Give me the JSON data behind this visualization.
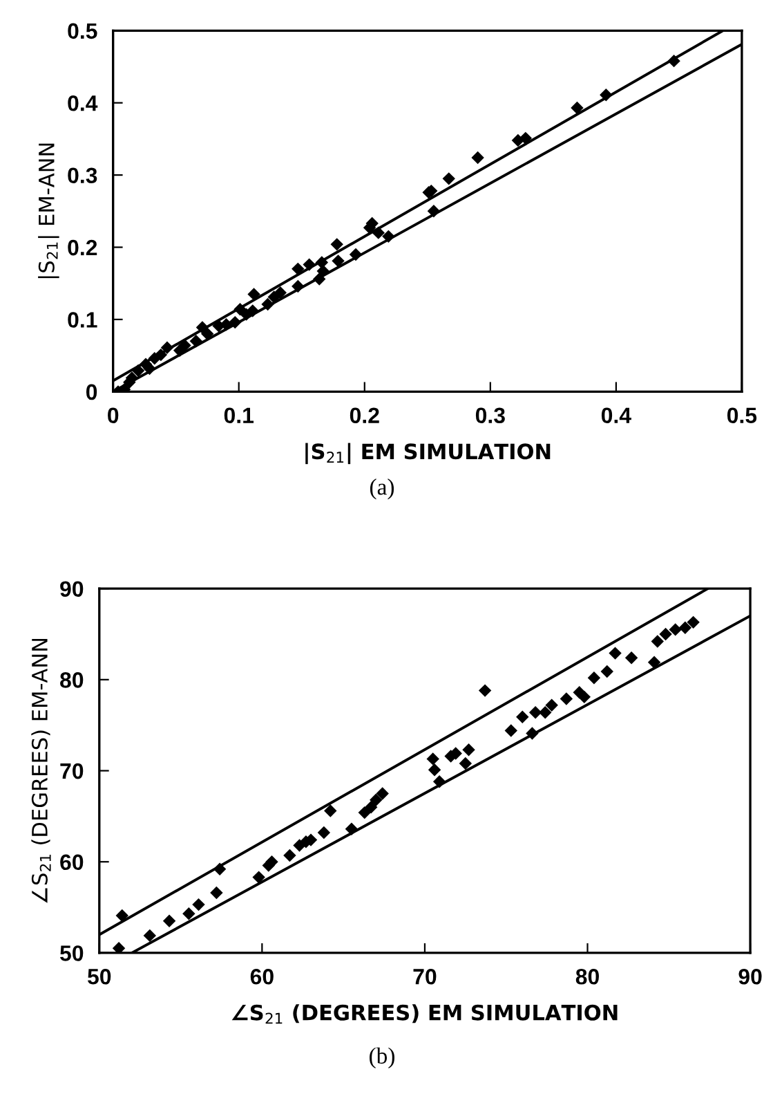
{
  "chart_data": [
    {
      "type": "scatter",
      "xlabel": "|S$_{21}$| EM SIMULATION",
      "ylabel": "|S$_{21}$| EM-ANN",
      "annotations": [
        "(a)"
      ],
      "grid": false,
      "xlim": [
        0,
        0.5
      ],
      "ylim": [
        0,
        0.5
      ],
      "xticks": [
        0,
        0.1,
        0.2,
        0.3,
        0.4,
        0.5
      ],
      "yticks": [
        0,
        0.1,
        0.2,
        0.3,
        0.4,
        0.5
      ],
      "series": [
        {
          "marker": "diamond",
          "color": "#000000",
          "x": [
            0.446,
            0.392,
            0.369,
            0.328,
            0.322,
            0.29,
            0.267,
            0.251,
            0.253,
            0.255,
            0.206,
            0.204,
            0.211,
            0.219,
            0.193,
            0.178,
            0.179,
            0.166,
            0.156,
            0.147,
            0.167,
            0.164,
            0.147,
            0.133,
            0.128,
            0.123,
            0.112,
            0.111,
            0.106,
            0.101,
            0.097,
            0.09,
            0.084,
            0.071,
            0.075,
            0.066,
            0.057,
            0.053,
            0.043,
            0.038,
            0.033,
            0.026,
            0.029,
            0.02,
            0.015,
            0.013,
            0.009,
            0.004
          ],
          "values": [
            0.458,
            0.411,
            0.393,
            0.351,
            0.348,
            0.324,
            0.295,
            0.276,
            0.278,
            0.25,
            0.233,
            0.227,
            0.22,
            0.215,
            0.19,
            0.204,
            0.181,
            0.179,
            0.176,
            0.17,
            0.167,
            0.156,
            0.146,
            0.137,
            0.131,
            0.121,
            0.135,
            0.112,
            0.107,
            0.114,
            0.096,
            0.093,
            0.091,
            0.089,
            0.08,
            0.07,
            0.064,
            0.057,
            0.061,
            0.051,
            0.046,
            0.038,
            0.032,
            0.029,
            0.019,
            0.013,
            0.003,
            0
          ]
        },
        {
          "type": "line",
          "color": "#000000",
          "x": [
            0,
            0.485
          ],
          "values": [
            0.015,
            0.5
          ]
        },
        {
          "type": "line",
          "color": "#000000",
          "x": [
            0,
            0.5
          ],
          "values": [
            0,
            0.481
          ]
        }
      ]
    },
    {
      "type": "scatter",
      "xlabel": "∠S$_{21}$ (DEGREES) EM SIMULATION",
      "ylabel": "∠S$_{21}$ (DEGREES) EM-ANN",
      "annotations": [
        "(b)"
      ],
      "grid": false,
      "xlim": [
        50,
        90
      ],
      "ylim": [
        50,
        90
      ],
      "xticks": [
        50,
        60,
        70,
        80,
        90
      ],
      "yticks": [
        50,
        60,
        70,
        80,
        90
      ],
      "series": [
        {
          "marker": "diamond",
          "color": "#000000",
          "x": [
            86.5,
            86.0,
            85.4,
            84.8,
            84.3,
            84.1,
            82.7,
            81.7,
            81.2,
            80.4,
            79.5,
            79.8,
            78.7,
            77.8,
            77.4,
            76.8,
            76.0,
            76.6,
            75.3,
            73.7,
            72.7,
            72.5,
            71.9,
            71.6,
            70.5,
            70.6,
            70.9,
            67.4,
            67.0,
            66.7,
            66.3,
            65.5,
            64.2,
            63.8,
            63.0,
            62.3,
            62.7,
            61.7,
            60.6,
            59.8,
            57.4,
            57.2,
            56.1,
            55.5,
            54.3,
            53.1,
            51.4,
            51.2,
            60.4
          ],
          "values": [
            86.3,
            85.7,
            85.5,
            85.0,
            84.2,
            81.9,
            82.4,
            82.9,
            80.9,
            80.2,
            78.6,
            78.1,
            77.9,
            77.2,
            76.4,
            76.4,
            75.9,
            74.1,
            74.4,
            78.8,
            72.3,
            70.8,
            71.9,
            71.6,
            71.3,
            70.1,
            68.8,
            67.5,
            66.8,
            66.0,
            65.4,
            63.6,
            65.6,
            63.2,
            62.4,
            61.8,
            62.2,
            60.7,
            60.0,
            58.3,
            59.2,
            56.6,
            55.3,
            54.3,
            53.5,
            51.9,
            54.1,
            50.5,
            59.6
          ]
        },
        {
          "type": "line",
          "color": "#000000",
          "x": [
            50,
            87.4
          ],
          "values": [
            52,
            90
          ]
        },
        {
          "type": "line",
          "color": "#000000",
          "x": [
            52,
            90
          ],
          "values": [
            50,
            87
          ]
        }
      ]
    }
  ]
}
